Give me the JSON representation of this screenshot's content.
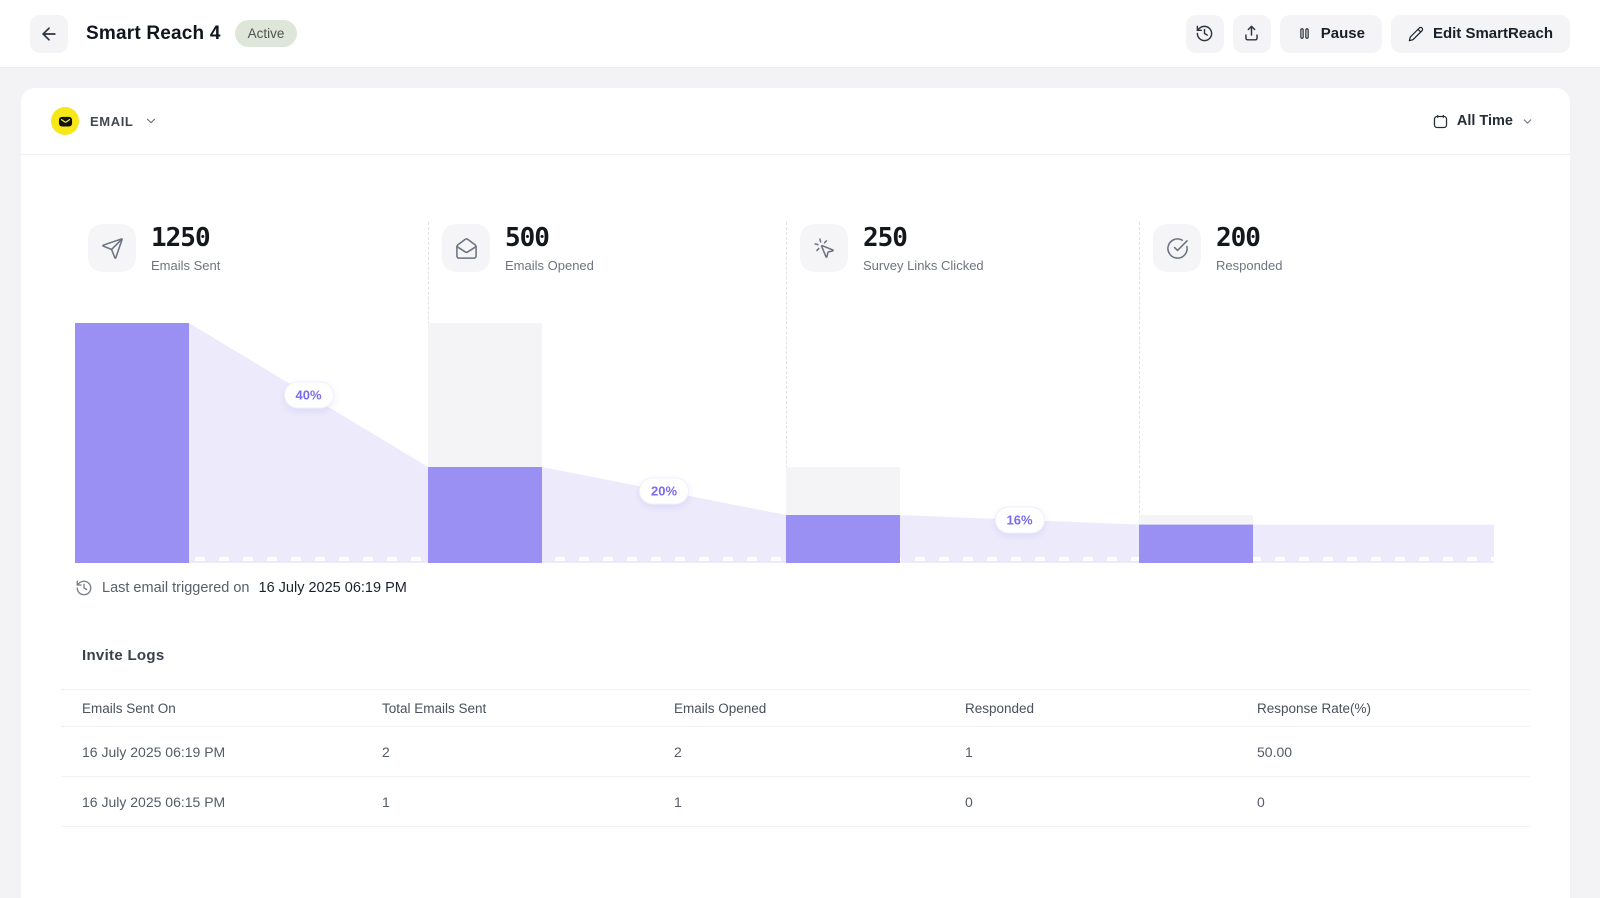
{
  "header": {
    "title": "Smart Reach 4",
    "status_badge": "Active",
    "pause_label": "Pause",
    "edit_label": "Edit SmartReach"
  },
  "filters": {
    "channel_label": "EMAIL",
    "time_filter_label": "All Time"
  },
  "stats": [
    {
      "value": "1250",
      "label": "Emails Sent",
      "icon": "send-icon"
    },
    {
      "value": "500",
      "label": "Emails Opened",
      "icon": "mail-open-icon"
    },
    {
      "value": "250",
      "label": "Survey Links Clicked",
      "icon": "cursor-click-icon"
    },
    {
      "value": "200",
      "label": "Responded",
      "icon": "check-circle-icon"
    }
  ],
  "chart_data": {
    "type": "bar",
    "subtype": "funnel",
    "categories": [
      "Emails Sent",
      "Emails Opened",
      "Survey Links Clicked",
      "Responded"
    ],
    "values": [
      1250,
      500,
      250,
      200
    ],
    "percent_of_first": [
      100,
      40,
      20,
      16
    ],
    "connector_labels": [
      "40%",
      "20%",
      "16%"
    ],
    "bar_color": "#9a8ff3",
    "area_color": "#edebfb",
    "track_color": "#f4f4f7",
    "label_color": "#7a6bf0"
  },
  "last_triggered": {
    "prefix": "Last email triggered on",
    "datetime": "16 July 2025 06:19 PM"
  },
  "invite_logs": {
    "title": "Invite Logs",
    "columns": [
      "Emails Sent On",
      "Total Emails Sent",
      "Emails Opened",
      "Responded",
      "Response Rate(%)"
    ],
    "rows": [
      [
        "16 July 2025 06:19 PM",
        "2",
        "2",
        "1",
        "50.00"
      ],
      [
        "16 July 2025 06:15 PM",
        "1",
        "1",
        "0",
        "0"
      ]
    ]
  },
  "colors": {
    "accent_purple": "#9a8ff3",
    "channel_yellow": "#f7e717",
    "active_badge_bg": "#dde6d8"
  }
}
